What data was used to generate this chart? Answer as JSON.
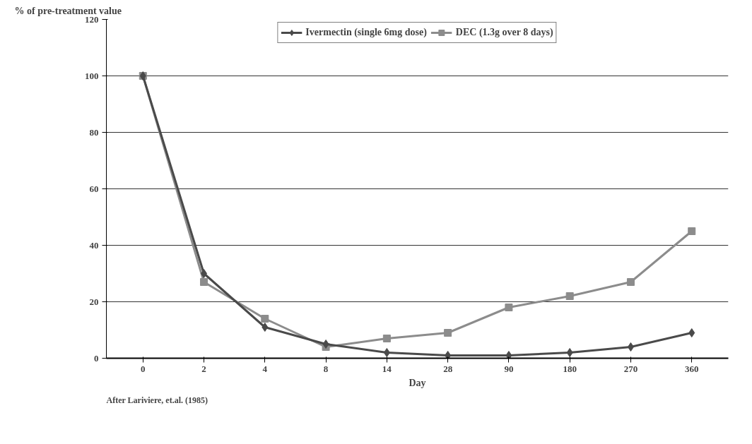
{
  "chart_data": {
    "type": "line",
    "ylabel": "% of pre-treatment value",
    "xlabel": "Day",
    "categories": [
      "0",
      "2",
      "4",
      "8",
      "14",
      "28",
      "90",
      "180",
      "270",
      "360"
    ],
    "series": [
      {
        "name": "Ivermectin (single 6mg dose)",
        "color": "#4a4a4a",
        "marker": "diamond",
        "values": [
          100,
          30,
          11,
          5,
          2,
          1,
          1,
          2,
          4,
          9
        ]
      },
      {
        "name": "DEC (1.3g over 8 days)",
        "color": "#8c8c8c",
        "marker": "square",
        "values": [
          100,
          27,
          14,
          4,
          7,
          9,
          18,
          22,
          27,
          45
        ]
      }
    ],
    "ylim": [
      0,
      120
    ],
    "yticks": [
      0,
      20,
      40,
      60,
      80,
      100,
      120
    ],
    "grid": "y",
    "legend": "top",
    "line_style": "solid",
    "annotations": [
      "After Lariviere, et.al. (1985)"
    ]
  }
}
